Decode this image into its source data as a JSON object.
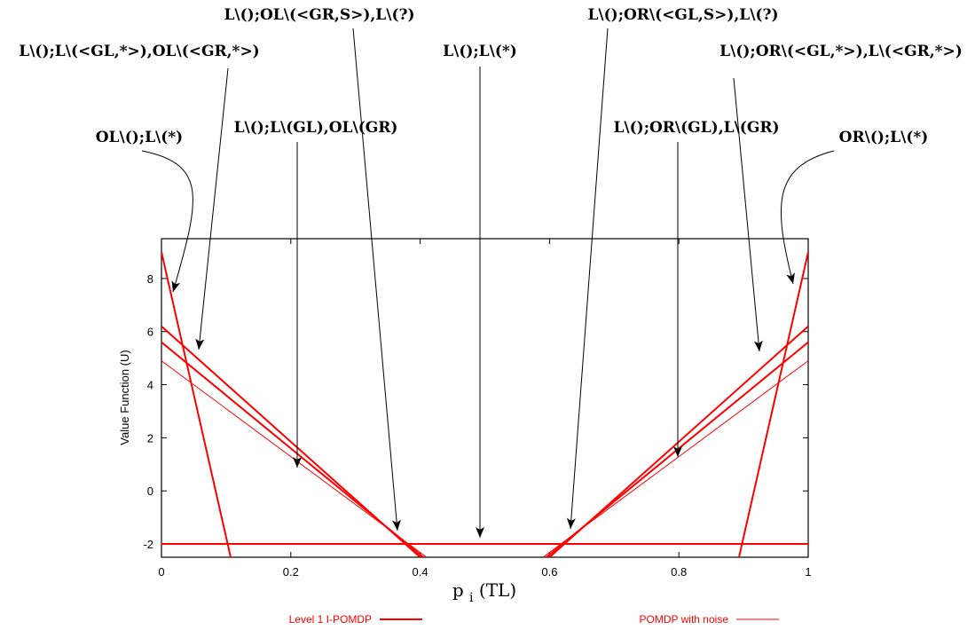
{
  "colors": {
    "series": "#ff0000",
    "axes": "#000000",
    "annotation": "#000000"
  },
  "chart_data": {
    "type": "line",
    "title": "",
    "xlabel_main": "p",
    "xlabel_sub": "i",
    "xlabel_tail": "(TL)",
    "ylabel": "Value Function (U)",
    "xlim": [
      0,
      1
    ],
    "ylim": [
      -2.5,
      9.5
    ],
    "xticks": [
      "0",
      "0.2",
      "0.4",
      "0.6",
      "0.8",
      "1"
    ],
    "yticks": [
      "-2",
      "0",
      "2",
      "4",
      "6",
      "8"
    ],
    "grid": false,
    "legend_placement": "bottom",
    "legend": [
      {
        "label": "Level 1 I-POMDP",
        "style": "thick"
      },
      {
        "label": "POMDP with noise",
        "style": "thin"
      }
    ],
    "series": [
      {
        "style": "thick",
        "x": [
          0,
          0.107
        ],
        "y": [
          9.0,
          -2.5
        ]
      },
      {
        "style": "thick",
        "x": [
          0,
          0.4
        ],
        "y": [
          6.2,
          -2.5
        ]
      },
      {
        "style": "thick",
        "x": [
          0,
          0.405
        ],
        "y": [
          5.6,
          -2.5
        ]
      },
      {
        "style": "thick",
        "x": [
          0,
          1
        ],
        "y": [
          -2.0,
          -2.0
        ]
      },
      {
        "style": "thick",
        "x": [
          0.6,
          1
        ],
        "y": [
          -2.5,
          6.2
        ]
      },
      {
        "style": "thick",
        "x": [
          0.595,
          1
        ],
        "y": [
          -2.5,
          5.6
        ]
      },
      {
        "style": "thick",
        "x": [
          0.893,
          1
        ],
        "y": [
          -2.5,
          9.0
        ]
      },
      {
        "style": "thin",
        "x": [
          0,
          0.41
        ],
        "y": [
          4.9,
          -2.5
        ]
      },
      {
        "style": "thin",
        "x": [
          0.59,
          1
        ],
        "y": [
          -2.5,
          4.9
        ]
      }
    ],
    "annotations": [
      {
        "text": "OL\\();L\\(*)",
        "point": [
          0.017,
          7.3
        ]
      },
      {
        "text": "L\\();L\\(<GL,*>),OL\\(<GR,*>)",
        "point": [
          0.058,
          5.3
        ]
      },
      {
        "text": "L\\();OL\\(<GR,S>),L\\(?)",
        "point": [
          0.365,
          -1.5
        ]
      },
      {
        "text": "L\\();L\\(GL),OL\\(GR)",
        "point": [
          0.21,
          1.3
        ]
      },
      {
        "text": "L\\();L\\(*)",
        "point": [
          0.493,
          -1.85
        ]
      },
      {
        "text": "L\\();OR\\(<GL,S>),L\\(?)",
        "point": [
          0.632,
          -1.4
        ]
      },
      {
        "text": "L\\();OR\\(GL),L\\(GR)",
        "point": [
          0.797,
          1.4
        ]
      },
      {
        "text": "L\\();OR\\(<GL,*>),L\\(<GR,*>)",
        "point": [
          0.925,
          5.1
        ]
      },
      {
        "text": "OR\\();L\\(*)",
        "point": [
          0.985,
          7.3
        ]
      }
    ]
  }
}
